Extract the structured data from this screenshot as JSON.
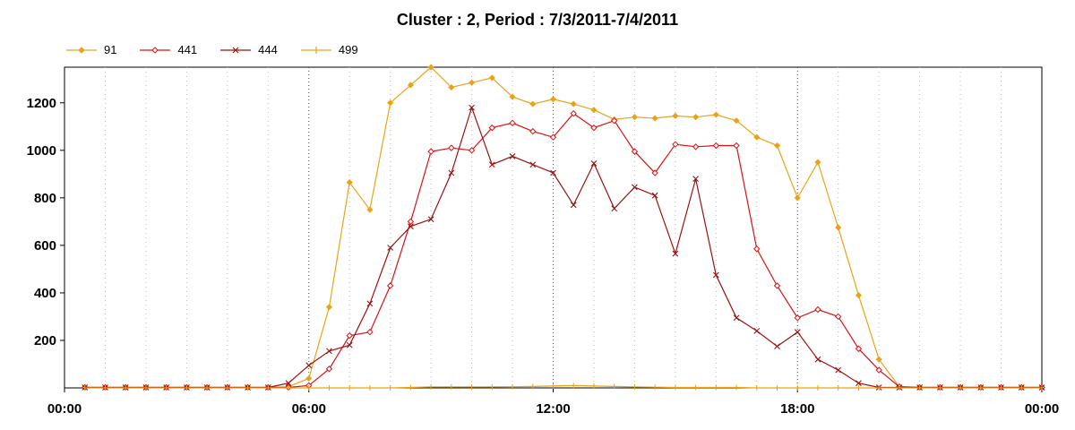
{
  "chart_data": {
    "type": "line",
    "title": "Cluster : 2, Period : 7/3/2011-7/4/2011",
    "xlabel": "",
    "ylabel": "",
    "x_ticks": [
      "00:00",
      "06:00",
      "12:00",
      "18:00",
      "00:00"
    ],
    "y_ticks": [
      200,
      400,
      600,
      800,
      1000,
      1200
    ],
    "xlim": [
      0,
      24
    ],
    "ylim": [
      0,
      1350
    ],
    "grid": "vertical dotted",
    "legend_position": "top-left",
    "x": [
      0.5,
      1,
      1.5,
      2,
      2.5,
      3,
      3.5,
      4,
      4.5,
      5,
      5.5,
      6,
      6.5,
      7,
      7.5,
      8,
      8.5,
      9,
      9.5,
      10,
      10.5,
      11,
      11.5,
      12,
      12.5,
      13,
      13.5,
      14,
      14.5,
      15,
      15.5,
      16,
      16.5,
      17,
      17.5,
      18,
      18.5,
      19,
      19.5,
      20,
      20.5,
      21,
      21.5,
      22,
      22.5,
      23,
      23.5,
      24
    ],
    "series": [
      {
        "name": "91",
        "color": "#e8a317",
        "marker": "diamond",
        "values": [
          2,
          2,
          2,
          2,
          2,
          2,
          2,
          2,
          2,
          2,
          5,
          40,
          340,
          865,
          750,
          1200,
          1275,
          1350,
          1265,
          1285,
          1305,
          1225,
          1195,
          1215,
          1195,
          1170,
          1130,
          1140,
          1135,
          1145,
          1140,
          1150,
          1125,
          1055,
          1020,
          800,
          950,
          675,
          390,
          120,
          5,
          2,
          2,
          2,
          2,
          2,
          2,
          2
        ]
      },
      {
        "name": "441",
        "color": "#dd1111",
        "marker": "diamond-open",
        "values": [
          2,
          2,
          2,
          2,
          2,
          2,
          2,
          2,
          2,
          2,
          2,
          10,
          80,
          220,
          235,
          430,
          700,
          995,
          1010,
          1000,
          1095,
          1115,
          1080,
          1055,
          1155,
          1095,
          1125,
          995,
          905,
          1025,
          1015,
          1020,
          1020,
          585,
          430,
          295,
          330,
          300,
          165,
          75,
          5,
          2,
          2,
          2,
          2,
          2,
          2,
          2
        ]
      },
      {
        "name": "444",
        "color": "#9a1212",
        "marker": "x",
        "values": [
          2,
          2,
          2,
          2,
          2,
          2,
          2,
          2,
          2,
          2,
          20,
          95,
          155,
          180,
          355,
          590,
          680,
          710,
          905,
          1180,
          940,
          975,
          940,
          905,
          770,
          945,
          755,
          845,
          810,
          565,
          880,
          475,
          295,
          240,
          175,
          235,
          120,
          75,
          20,
          2,
          2,
          2,
          2,
          2,
          2,
          2,
          2,
          2
        ]
      },
      {
        "name": "499",
        "color": "#e8a317",
        "marker": "plus",
        "values": [
          0,
          0,
          0,
          0,
          0,
          0,
          0,
          0,
          0,
          0,
          0,
          0,
          0,
          0,
          0,
          0,
          2,
          4,
          4,
          4,
          4,
          5,
          6,
          8,
          10,
          8,
          6,
          4,
          3,
          2,
          2,
          2,
          2,
          0,
          0,
          0,
          0,
          0,
          0,
          0,
          0,
          0,
          0,
          0,
          0,
          0,
          0,
          0
        ]
      }
    ]
  }
}
